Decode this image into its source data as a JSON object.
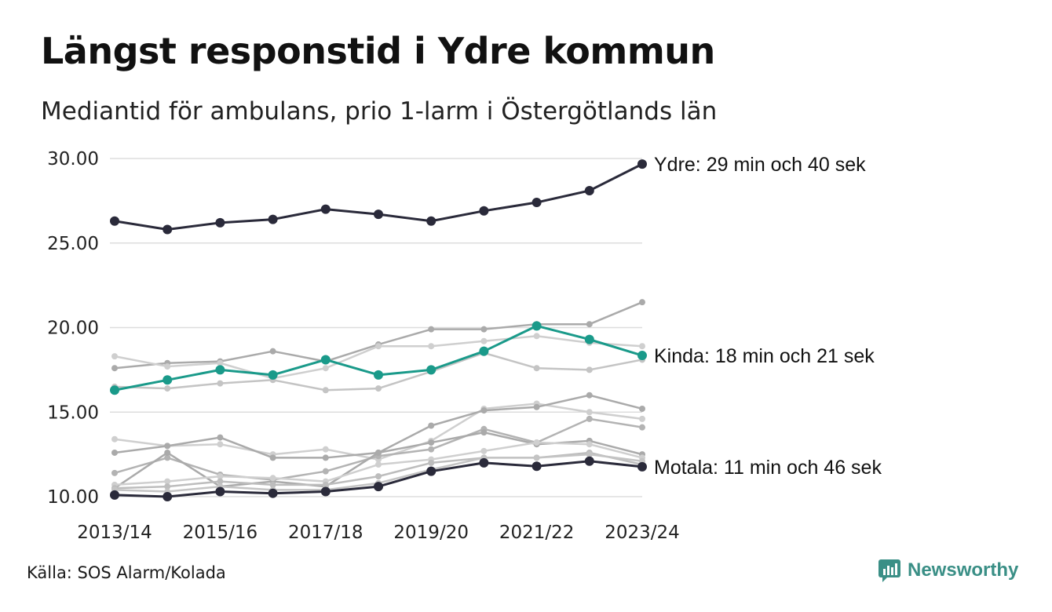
{
  "title": "Längst responstid i Ydre kommun",
  "subtitle": "Mediantid för ambulans, prio 1-larm i Östergötlands län",
  "source": "Källa: SOS Alarm/Kolada",
  "brand": {
    "name": "Newsworthy",
    "icon": "newsworthy-logo-icon",
    "color": "#3a8f86"
  },
  "colors": {
    "highlight_dark": "#2a2a3a",
    "highlight_teal": "#1a9a8a",
    "background_series": [
      "#bdbdbd",
      "#aaaaaa",
      "#cfcfcf"
    ],
    "grid": "#dddddd"
  },
  "chart_data": {
    "type": "line",
    "x": [
      "2013/14",
      "2014/15",
      "2015/16",
      "2016/17",
      "2017/18",
      "2018/19",
      "2019/20",
      "2020/21",
      "2021/22",
      "2022/23",
      "2023/24"
    ],
    "x_tick_labels": [
      "2013/14",
      "2015/16",
      "2017/18",
      "2019/20",
      "2021/22",
      "2023/24"
    ],
    "y_tick_labels": [
      "10.00",
      "15.00",
      "20.00",
      "25.00",
      "30.00"
    ],
    "ylim": [
      10,
      30
    ],
    "grid": true,
    "series": [
      {
        "values": [
          17.6,
          17.9,
          18.0,
          18.6,
          18.0,
          19.0,
          19.9,
          19.9,
          20.2,
          20.2,
          21.5
        ],
        "style": "background",
        "color": "#aaaaaa"
      },
      {
        "values": [
          18.3,
          17.7,
          17.9,
          17.0,
          17.6,
          18.9,
          18.9,
          19.2,
          19.5,
          19.1,
          18.9
        ],
        "style": "background",
        "color": "#cfcfcf"
      },
      {
        "values": [
          16.5,
          16.4,
          16.7,
          16.9,
          16.3,
          16.4,
          17.4,
          18.5,
          17.6,
          17.5,
          18.1
        ],
        "style": "background",
        "color": "#c4c4c4"
      },
      {
        "values": [
          13.4,
          13.0,
          13.1,
          12.5,
          12.8,
          12.2,
          13.3,
          15.2,
          15.5,
          15.0,
          14.6
        ],
        "style": "background",
        "color": "#cfcfcf"
      },
      {
        "values": [
          12.6,
          13.0,
          13.5,
          12.3,
          12.3,
          12.6,
          14.2,
          15.1,
          15.3,
          16.0,
          15.2
        ],
        "style": "background",
        "color": "#aaaaaa"
      },
      {
        "values": [
          11.4,
          12.3,
          11.3,
          11.0,
          11.5,
          12.4,
          12.8,
          14.0,
          13.2,
          14.6,
          14.1
        ],
        "style": "background",
        "color": "#b3b3b3"
      },
      {
        "values": [
          10.5,
          12.6,
          10.6,
          10.9,
          10.6,
          12.6,
          13.2,
          13.8,
          13.1,
          13.3,
          12.5
        ],
        "style": "background",
        "color": "#aaaaaa"
      },
      {
        "values": [
          10.7,
          10.9,
          11.2,
          11.1,
          10.9,
          11.9,
          12.2,
          12.7,
          13.2,
          13.1,
          12.3
        ],
        "style": "background",
        "color": "#cfcfcf"
      },
      {
        "values": [
          10.5,
          10.6,
          10.9,
          10.7,
          10.7,
          11.2,
          12.0,
          12.3,
          12.3,
          12.6,
          11.9
        ],
        "style": "background",
        "color": "#bdbdbd"
      },
      {
        "values": [
          10.4,
          10.3,
          10.6,
          10.4,
          10.4,
          10.8,
          11.6,
          12.3,
          12.3,
          12.5,
          12.1
        ],
        "style": "background",
        "color": "#c4c4c4"
      },
      {
        "name": "Ydre",
        "label": "Ydre: 29 min och 40 sek",
        "values": [
          26.3,
          25.8,
          26.2,
          26.4,
          27.0,
          26.7,
          26.3,
          26.9,
          27.4,
          28.1,
          29.67
        ],
        "style": "highlight",
        "color": "#2a2a3a"
      },
      {
        "name": "Kinda",
        "label": "Kinda: 18 min och 21 sek",
        "values": [
          16.3,
          16.9,
          17.5,
          17.2,
          18.1,
          17.2,
          17.5,
          18.6,
          20.1,
          19.3,
          18.35
        ],
        "style": "highlight",
        "color": "#1a9a8a"
      },
      {
        "name": "Motala",
        "label": "Motala: 11 min och 46 sek",
        "values": [
          10.1,
          10.0,
          10.3,
          10.2,
          10.3,
          10.6,
          11.5,
          12.0,
          11.8,
          12.1,
          11.77
        ],
        "style": "highlight",
        "color": "#2a2a3a"
      }
    ]
  }
}
